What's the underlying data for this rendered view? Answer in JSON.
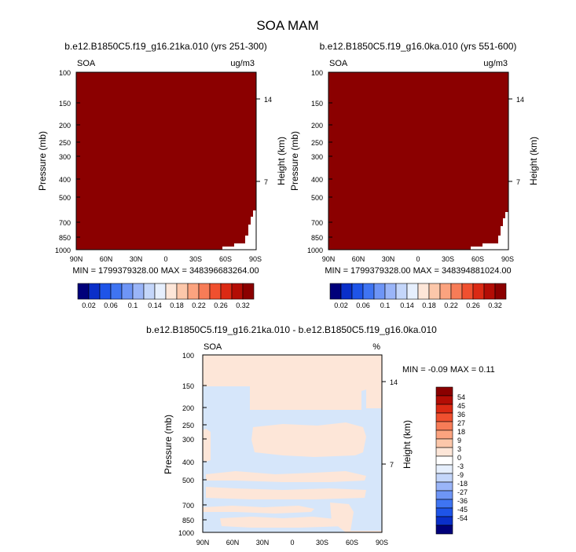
{
  "figure": {
    "title": "SOA MAM"
  },
  "chart_data": [
    {
      "type": "contour",
      "title": "b.e12.B1850C5.f19_g16.21ka.010 (yrs 251-300)",
      "variable_label": "SOA",
      "units_label": "ug/m3",
      "ylabel": "Pressure (mb)",
      "ylabel_right": "Height (km)",
      "x_ticks": [
        "90N",
        "60N",
        "30N",
        "0",
        "30S",
        "60S",
        "90S"
      ],
      "y_ticks": [
        "100",
        "150",
        "200",
        "250",
        "300",
        "400",
        "500",
        "700",
        "850",
        "1000"
      ],
      "y_ticks_right": [
        "14",
        "7"
      ],
      "stats_text": "MIN = 1799379328.00  MAX = 348396683264.00",
      "fill": "#8b0000",
      "colorbar": {
        "labels": [
          "0.02",
          "0.06",
          "0.1",
          "0.14",
          "0.18",
          "0.22",
          "0.26",
          "0.32"
        ],
        "colors": [
          "#00007a",
          "#0a2fc9",
          "#1e54e8",
          "#3f74f2",
          "#6e95f6",
          "#9ab5f8",
          "#c4d6fa",
          "#e6effd",
          "#fde6d8",
          "#fcc7aa",
          "#fba37f",
          "#f77c57",
          "#f0502f",
          "#db2a14",
          "#b30d05",
          "#8b0000"
        ]
      }
    },
    {
      "type": "contour",
      "title": "b.e12.B1850C5.f19_g16.0ka.010 (yrs 551-600)",
      "variable_label": "SOA",
      "units_label": "ug/m3",
      "ylabel": "Pressure (mb)",
      "ylabel_right": "Height (km)",
      "x_ticks": [
        "90N",
        "60N",
        "30N",
        "0",
        "30S",
        "60S",
        "90S"
      ],
      "y_ticks": [
        "100",
        "150",
        "200",
        "250",
        "300",
        "400",
        "500",
        "700",
        "850",
        "1000"
      ],
      "y_ticks_right": [
        "14",
        "7"
      ],
      "stats_text": "MIN = 1799379328.00  MAX = 348394881024.00",
      "fill": "#8b0000",
      "colorbar": {
        "labels": [
          "0.02",
          "0.06",
          "0.1",
          "0.14",
          "0.18",
          "0.22",
          "0.26",
          "0.32"
        ],
        "colors": [
          "#00007a",
          "#0a2fc9",
          "#1e54e8",
          "#3f74f2",
          "#6e95f6",
          "#9ab5f8",
          "#c4d6fa",
          "#e6effd",
          "#fde6d8",
          "#fcc7aa",
          "#fba37f",
          "#f77c57",
          "#f0502f",
          "#db2a14",
          "#b30d05",
          "#8b0000"
        ]
      }
    },
    {
      "type": "contour",
      "title": "b.e12.B1850C5.f19_g16.21ka.010 - b.e12.B1850C5.f19_g16.0ka.010",
      "variable_label": "SOA",
      "units_label": "%",
      "ylabel": "Pressure (mb)",
      "ylabel_right": "Height (km)",
      "x_ticks": [
        "90N",
        "60N",
        "30N",
        "0",
        "30S",
        "60S",
        "90S"
      ],
      "y_ticks": [
        "100",
        "150",
        "200",
        "250",
        "300",
        "400",
        "500",
        "700",
        "850",
        "1000"
      ],
      "y_ticks_right": [
        "14",
        "7"
      ],
      "stats_text": "MIN = -0.09  MAX =  0.11",
      "fill_positive": "#fde6d8",
      "fill_negative": "#d6e6fa",
      "colorbar": {
        "labels": [
          "54",
          "45",
          "36",
          "27",
          "18",
          "9",
          "3",
          "0",
          "-3",
          "-9",
          "-18",
          "-27",
          "-36",
          "-45",
          "-54"
        ],
        "colors": [
          "#8b0000",
          "#b30d05",
          "#db2a14",
          "#f0502f",
          "#f77c57",
          "#fba37f",
          "#fcc7aa",
          "#fde6d8",
          "#ffffff",
          "#e6effd",
          "#c4d6fa",
          "#9ab5f8",
          "#6e95f6",
          "#3f74f2",
          "#1e54e8",
          "#0a2fc9",
          "#00007a"
        ]
      }
    }
  ]
}
